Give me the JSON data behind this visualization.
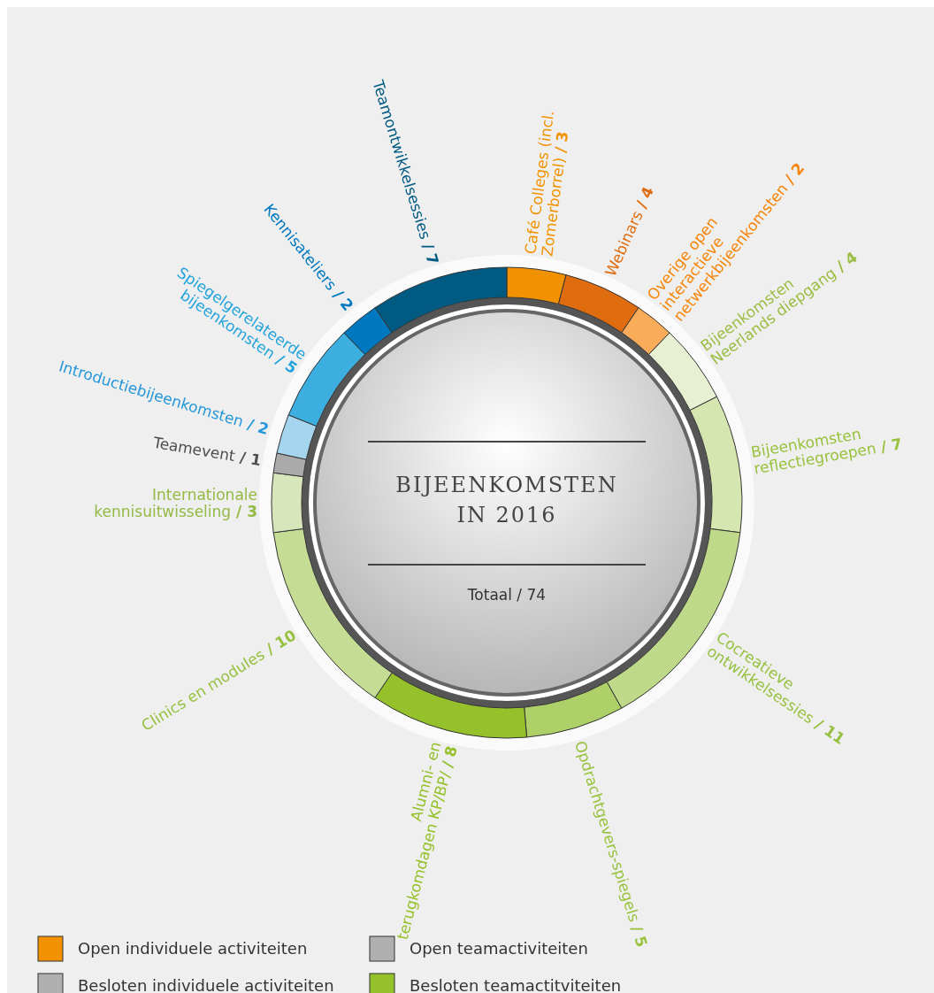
{
  "chart_data": {
    "type": "donut",
    "title": "BIJEENKOMSTEN IN 2016",
    "subtitle": "Totaal / 74",
    "categories": [
      "Café Colleges (incl. Zomerborrel)",
      "Webinars",
      "Overige open interactieve netwerkbijeenkomsten",
      "Bijeenkomsten Neerlands diepgang",
      "Bijeenkomsten reflectiegroepen",
      "Cocreatieve ontwikkelsessies",
      "Opdrachtgevers-spiegels",
      "Alumni- en terugkomdagen KP/BP/",
      "Clinics en modules",
      "Internationale kennisuitwisseling",
      "Teamevent",
      "Introductiebijeenkomsten",
      "Spiegelgerelateerde bijeenkomsten",
      "Kennisateliers",
      "Teamontwikkelsessies"
    ],
    "values": [
      3,
      4,
      2,
      4,
      7,
      11,
      5,
      8,
      10,
      3,
      1,
      2,
      5,
      2,
      7
    ],
    "colors": [
      "#f39200",
      "#e06c10",
      "#f9ad5a",
      "#e8f0d4",
      "#d5e6b0",
      "#bfd98a",
      "#aed068",
      "#95c12b",
      "#c5dc95",
      "#d8e6bb",
      "#aaaaaa",
      "#a5d4ef",
      "#3daee0",
      "#0078bf",
      "#005a82"
    ],
    "value_labels": [
      "/ 3",
      "/ 4",
      "/ 2",
      "/ 4",
      "/ 7",
      "/ 11",
      "/ 5",
      "/ 8",
      "/ 10",
      "/ 3",
      "/ 1",
      "/ 2",
      "/ 5",
      "/ 2",
      "/ 7"
    ],
    "annotations": [
      "Open individuele activiteiten",
      "Open teamactiviteiten",
      "Besloten individuele activiteiten",
      "Besloten teamactitviteiten"
    ]
  }
}
